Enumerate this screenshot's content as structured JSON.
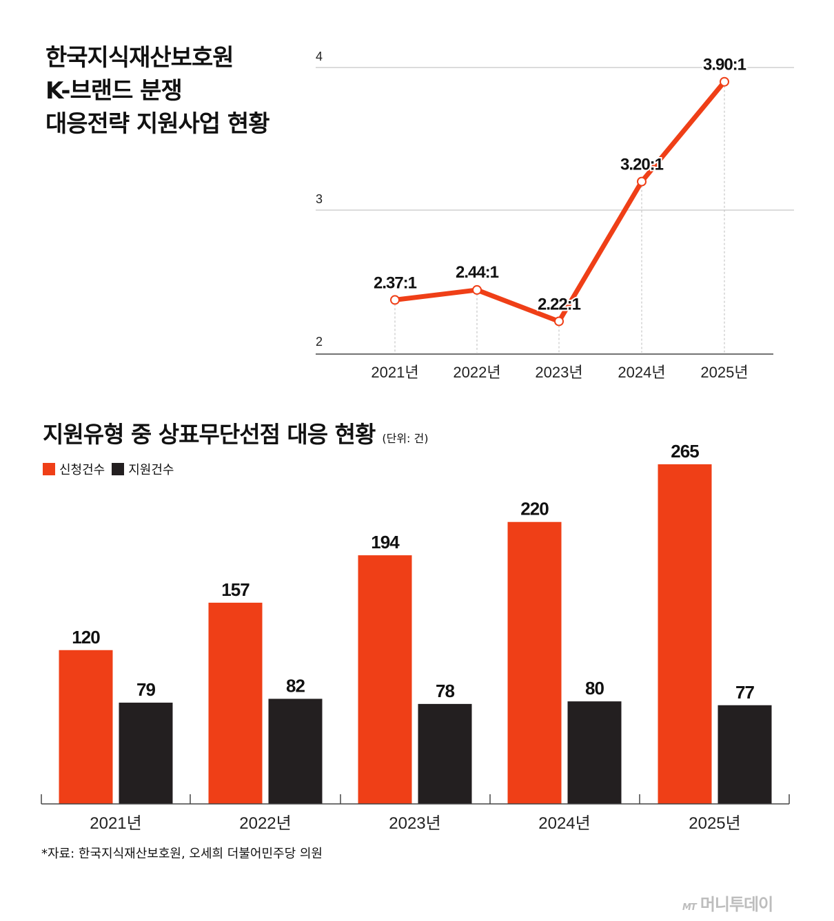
{
  "colors": {
    "accent": "#ef3f17",
    "dark": "#231f20",
    "grid": "#cfcfcf"
  },
  "line_title": [
    "한국지식재산보호원",
    "K-브랜드 분쟁",
    "대응전략 지원사업 현황"
  ],
  "bar_title": "지원유형 중 상표무단선점 대응 현황",
  "bar_unit": "(단위: 건)",
  "source": "*자료: 한국지식재산보호원, 오세희 더불어민주당 의원",
  "watermark": {
    "logo": "MT",
    "name": "머니투데이"
  },
  "chart_data": [
    {
      "type": "line",
      "title": "한국지식재산보호원 K-브랜드 분쟁 대응전략 지원사업 현황",
      "categories": [
        "2021년",
        "2022년",
        "2023년",
        "2024년",
        "2025년"
      ],
      "values": [
        2.37,
        2.44,
        2.22,
        3.2,
        3.9
      ],
      "data_labels": [
        "2.37:1",
        "2.44:1",
        "2.22:1",
        "3.20:1",
        "3.90:1"
      ],
      "y_ticks": [
        2,
        3,
        4
      ],
      "ylim": [
        2,
        4
      ],
      "grid": true
    },
    {
      "type": "bar",
      "title": "지원유형 중 상표무단선점 대응 현황",
      "categories": [
        "2021년",
        "2022년",
        "2023년",
        "2024년",
        "2025년"
      ],
      "series": [
        {
          "name": "신청건수",
          "color": "#ef3f17",
          "values": [
            120,
            157,
            194,
            220,
            265
          ]
        },
        {
          "name": "지원건수",
          "color": "#231f20",
          "values": [
            79,
            82,
            78,
            80,
            77
          ]
        }
      ],
      "ylim": [
        0,
        265
      ],
      "legend": "top-left"
    }
  ]
}
